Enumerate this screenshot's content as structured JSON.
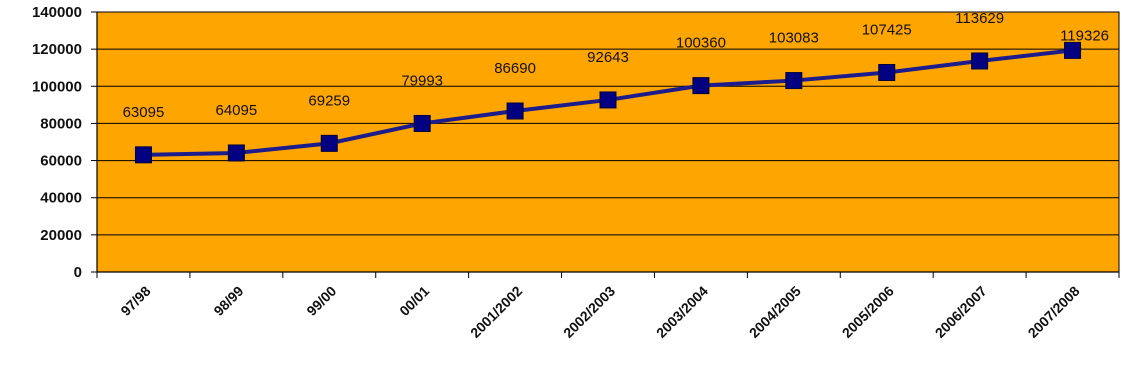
{
  "chart_data": {
    "type": "line",
    "title": "",
    "xlabel": "",
    "ylabel": "",
    "categories": [
      "97/98",
      "98/99",
      "99/00",
      "00/01",
      "2001/2002",
      "2002/2003",
      "2003/2004",
      "2004/2005",
      "2005/2006",
      "2006/2007",
      "2007/2008"
    ],
    "series": [
      {
        "values": [
          63095,
          64095,
          69259,
          79993,
          86690,
          92643,
          100360,
          103083,
          107425,
          113629,
          119326
        ]
      }
    ],
    "data_labels": [
      "63095",
      "64095",
      "69259",
      "79993",
      "86690",
      "92643",
      "100360",
      "103083",
      "107425",
      "113629",
      "119326"
    ],
    "y_ticks": [
      "0",
      "20000",
      "40000",
      "60000",
      "80000",
      "100000",
      "120000",
      "140000"
    ],
    "ylim": [
      0,
      140000
    ],
    "grid": true,
    "legend": "none",
    "colors": {
      "plot_background": "#ffa500",
      "line": "#1c1c8c",
      "marker": "#000080",
      "gridline": "#000000",
      "text": "#111111"
    }
  }
}
